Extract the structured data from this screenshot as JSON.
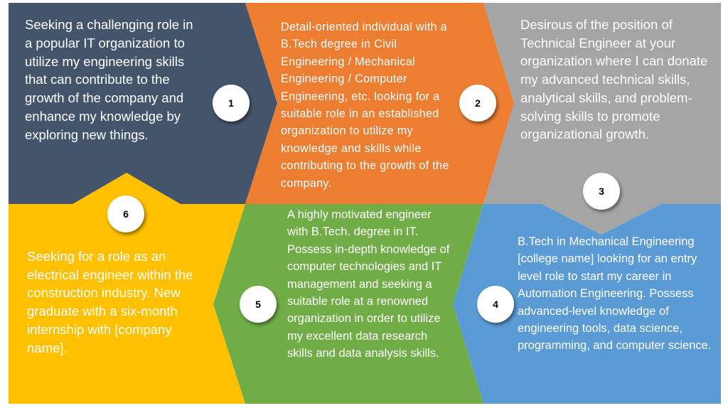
{
  "steps": [
    {
      "number": "1",
      "color": "#44546a",
      "text": "Seeking a challenging role in a popular IT organization to utilize my engineering skills that can contribute to the growth of the company and enhance my knowledge by exploring new things."
    },
    {
      "number": "2",
      "color": "#ed7d31",
      "text": "Detail-oriented individual with a B.Tech degree in Civil Engineering / Mechanical Engineering / Computer Engineering, etc. looking for a suitable role in an established organization to utilize my knowledge and skills while contributing to the growth of the company."
    },
    {
      "number": "3",
      "color": "#a5a5a5",
      "text": "Desirous of the position of Technical Engineer at your organization where I can donate my advanced technical skills, analytical skills, and problem-solving skills to promote organizational growth."
    },
    {
      "number": "4",
      "color": "#5b9bd5",
      "text": "B.Tech in Mechanical Engineering [college name] looking for an entry level role to start my career in Automation Engineering. Possess advanced-level knowledge of engineering tools, data science, programming, and computer science."
    },
    {
      "number": "5",
      "color": "#70ad47",
      "text": "A highly motivated engineer with B.Tech. degree in IT. Possess in-depth knowledge of computer technologies and IT management and seeking a suitable role at a renowned organization in order to utilize my excellent data research skills and data analysis skills."
    },
    {
      "number": "6",
      "color": "#ffc000",
      "text": "Seeking for a role as an electrical engineer within the construction industry. New graduate with a six-month internship with [company name]."
    }
  ]
}
